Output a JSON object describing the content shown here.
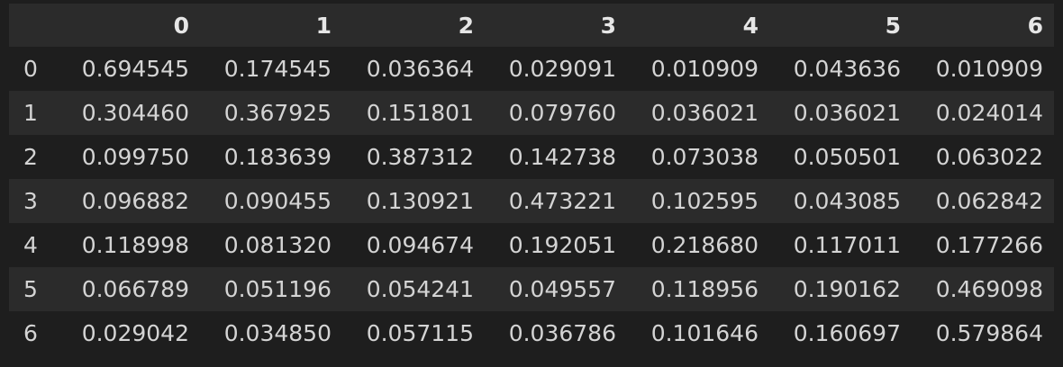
{
  "table": {
    "columns": [
      "0",
      "1",
      "2",
      "3",
      "4",
      "5",
      "6"
    ],
    "index_header": "",
    "rows": [
      {
        "index": "0",
        "values": [
          "0.694545",
          "0.174545",
          "0.036364",
          "0.029091",
          "0.010909",
          "0.043636",
          "0.010909"
        ]
      },
      {
        "index": "1",
        "values": [
          "0.304460",
          "0.367925",
          "0.151801",
          "0.079760",
          "0.036021",
          "0.036021",
          "0.024014"
        ]
      },
      {
        "index": "2",
        "values": [
          "0.099750",
          "0.183639",
          "0.387312",
          "0.142738",
          "0.073038",
          "0.050501",
          "0.063022"
        ]
      },
      {
        "index": "3",
        "values": [
          "0.096882",
          "0.090455",
          "0.130921",
          "0.473221",
          "0.102595",
          "0.043085",
          "0.062842"
        ]
      },
      {
        "index": "4",
        "values": [
          "0.118998",
          "0.081320",
          "0.094674",
          "0.192051",
          "0.218680",
          "0.117011",
          "0.177266"
        ]
      },
      {
        "index": "5",
        "values": [
          "0.066789",
          "0.051196",
          "0.054241",
          "0.049557",
          "0.118956",
          "0.190162",
          "0.469098"
        ]
      },
      {
        "index": "6",
        "values": [
          "0.029042",
          "0.034850",
          "0.057115",
          "0.036786",
          "0.101646",
          "0.160697",
          "0.579864"
        ]
      }
    ]
  },
  "colors": {
    "background": "#1e1e1e",
    "stripe": "#2b2b2b",
    "text": "#d4d4d4",
    "header_text": "#e6e6e6"
  }
}
